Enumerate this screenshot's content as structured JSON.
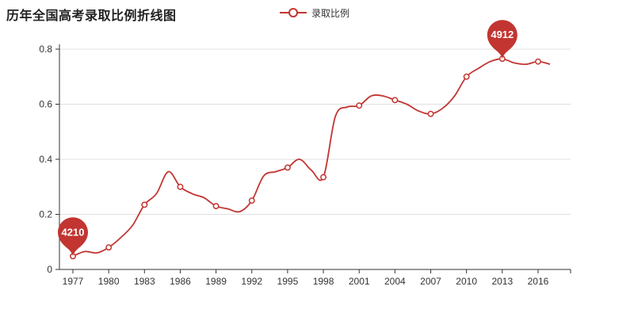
{
  "title": "历年全国高考录取比例折线图",
  "legend": {
    "items": [
      {
        "label": "录取比例",
        "color": "#c23531"
      }
    ]
  },
  "colors": {
    "line": "#c23531",
    "marker_fill": "#ffffff",
    "pin": "#c23531",
    "pin_text": "#ffffff",
    "grid": "#e0e0e0",
    "axis": "#333333",
    "tick_label": "#333333",
    "background": "#ffffff",
    "title_text": "#222222",
    "legend_text": "#333333"
  },
  "chart_data": {
    "type": "line",
    "title": "历年全国高考录取比例折线图",
    "series": [
      {
        "name": "录取比例",
        "smooth": true,
        "x": [
          1977,
          1978,
          1979,
          1980,
          1981,
          1982,
          1983,
          1984,
          1985,
          1986,
          1987,
          1988,
          1989,
          1990,
          1991,
          1992,
          1993,
          1994,
          1995,
          1996,
          1997,
          1998,
          1999,
          2000,
          2001,
          2002,
          2003,
          2004,
          2005,
          2006,
          2007,
          2008,
          2009,
          2010,
          2011,
          2012,
          2013,
          2014,
          2015,
          2016,
          2017
        ],
        "values": [
          0.048,
          0.065,
          0.06,
          0.08,
          0.115,
          0.16,
          0.235,
          0.275,
          0.355,
          0.3,
          0.275,
          0.26,
          0.23,
          0.22,
          0.21,
          0.25,
          0.34,
          0.355,
          0.37,
          0.4,
          0.36,
          0.335,
          0.555,
          0.59,
          0.595,
          0.63,
          0.63,
          0.615,
          0.6,
          0.575,
          0.565,
          0.585,
          0.63,
          0.7,
          0.73,
          0.755,
          0.765,
          0.75,
          0.745,
          0.755,
          0.745
        ]
      }
    ],
    "x_tick_labels": [
      "1977",
      "1980",
      "1983",
      "1986",
      "1989",
      "1992",
      "1995",
      "1998",
      "2001",
      "2004",
      "2007",
      "2010",
      "2013",
      "2016"
    ],
    "x_label_interval": 3,
    "symbol_interval": 3,
    "y_ticks": [
      "0",
      "0.2",
      "0.4",
      "0.6",
      "0.8"
    ],
    "y_tick_values": [
      0,
      0.2,
      0.4,
      0.6,
      0.8
    ],
    "ylim": [
      0,
      0.8
    ],
    "grid": "horizontal",
    "legend_position": "top-center",
    "markers": {
      "min": {
        "year": 1977,
        "value": 0.048,
        "label": "4210"
      },
      "max": {
        "year": 2013,
        "value": 0.765,
        "label": "4912"
      }
    }
  }
}
